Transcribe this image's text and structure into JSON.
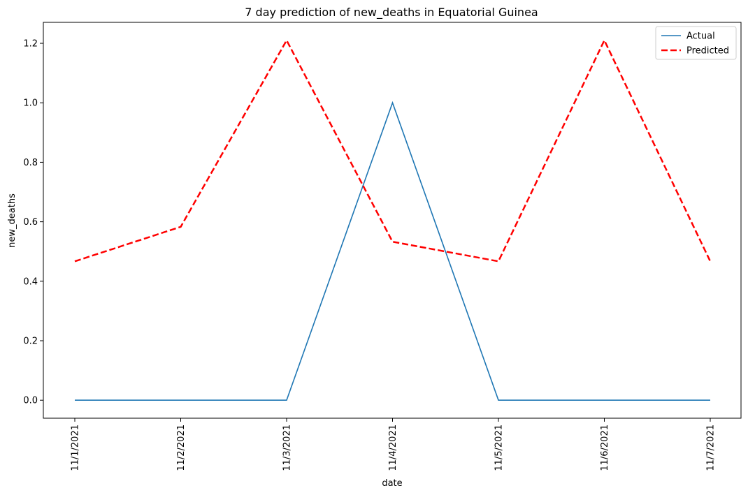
{
  "chart_data": {
    "type": "line",
    "title": "7 day prediction of new_deaths in Equatorial Guinea",
    "xlabel": "date",
    "ylabel": "new_deaths",
    "categories": [
      "11/1/2021",
      "11/2/2021",
      "11/3/2021",
      "11/4/2021",
      "11/5/2021",
      "11/6/2021",
      "11/7/2021"
    ],
    "series": [
      {
        "name": "Actual",
        "values": [
          0,
          0,
          0,
          1,
          0,
          0,
          0
        ],
        "color": "#1f77b4",
        "style": "solid"
      },
      {
        "name": "Predicted",
        "values": [
          0.467,
          0.583,
          1.21,
          0.533,
          0.467,
          1.21,
          0.467
        ],
        "color": "#ff0000",
        "style": "dashed"
      }
    ],
    "ylim": [
      -0.0605,
      1.2705
    ],
    "yticks": [
      "0.0",
      "0.2",
      "0.4",
      "0.6",
      "0.8",
      "1.0",
      "1.2"
    ],
    "grid": false,
    "legend": "top-right"
  }
}
